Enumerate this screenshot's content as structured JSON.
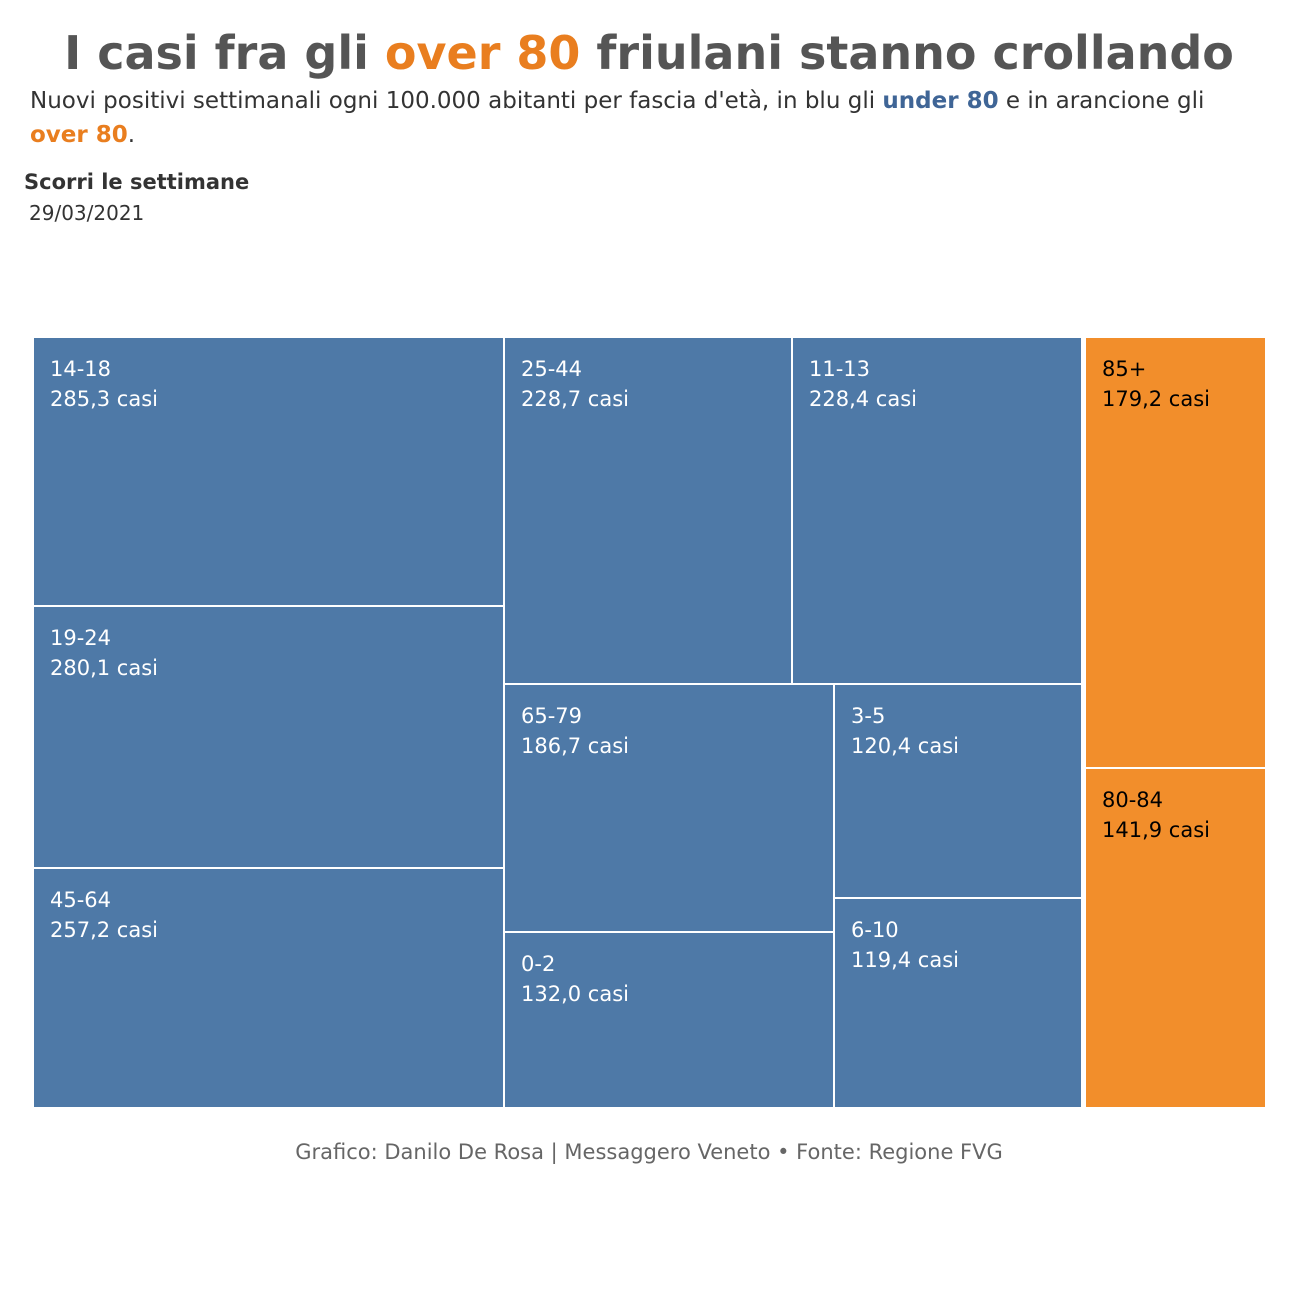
{
  "title": {
    "part1": "I casi fra gli ",
    "highlight": "over 80",
    "part2": " friulani stanno crollando"
  },
  "subtitle": {
    "text1": "Nuovi positivi settimanali ogni 100.000 abitanti per fascia d'età, in blu gli ",
    "under_label": "under 80",
    "text2": " e in arancione gli ",
    "over_label": "over 80",
    "text3": "."
  },
  "slider": {
    "label": "Scorri le settimane",
    "date": "29/03/2021"
  },
  "colors": {
    "under": "#4e79a7",
    "over": "#f28e2b",
    "title_highlight": "#e97e1f"
  },
  "chart_data": {
    "type": "treemap",
    "unit": "casi",
    "groups": [
      {
        "name": "under 80",
        "color": "#4e79a7",
        "items": [
          {
            "label": "14-18",
            "value": 285.3,
            "value_text": "285,3 casi"
          },
          {
            "label": "19-24",
            "value": 280.1,
            "value_text": "280,1 casi"
          },
          {
            "label": "45-64",
            "value": 257.2,
            "value_text": "257,2 casi"
          },
          {
            "label": "25-44",
            "value": 228.7,
            "value_text": "228,7 casi"
          },
          {
            "label": "11-13",
            "value": 228.4,
            "value_text": "228,4 casi"
          },
          {
            "label": "65-79",
            "value": 186.7,
            "value_text": "186,7 casi"
          },
          {
            "label": "0-2",
            "value": 132.0,
            "value_text": "132,0 casi"
          },
          {
            "label": "3-5",
            "value": 120.4,
            "value_text": "120,4 casi"
          },
          {
            "label": "6-10",
            "value": 119.4,
            "value_text": "119,4 casi"
          }
        ]
      },
      {
        "name": "over 80",
        "color": "#f28e2b",
        "items": [
          {
            "label": "85+",
            "value": 179.2,
            "value_text": "179,2 casi"
          },
          {
            "label": "80-84",
            "value": 141.9,
            "value_text": "141,9 casi"
          }
        ]
      }
    ]
  },
  "credit": "Grafico: Danilo De Rosa | Messaggero Veneto • Fonte: Regione FVG"
}
